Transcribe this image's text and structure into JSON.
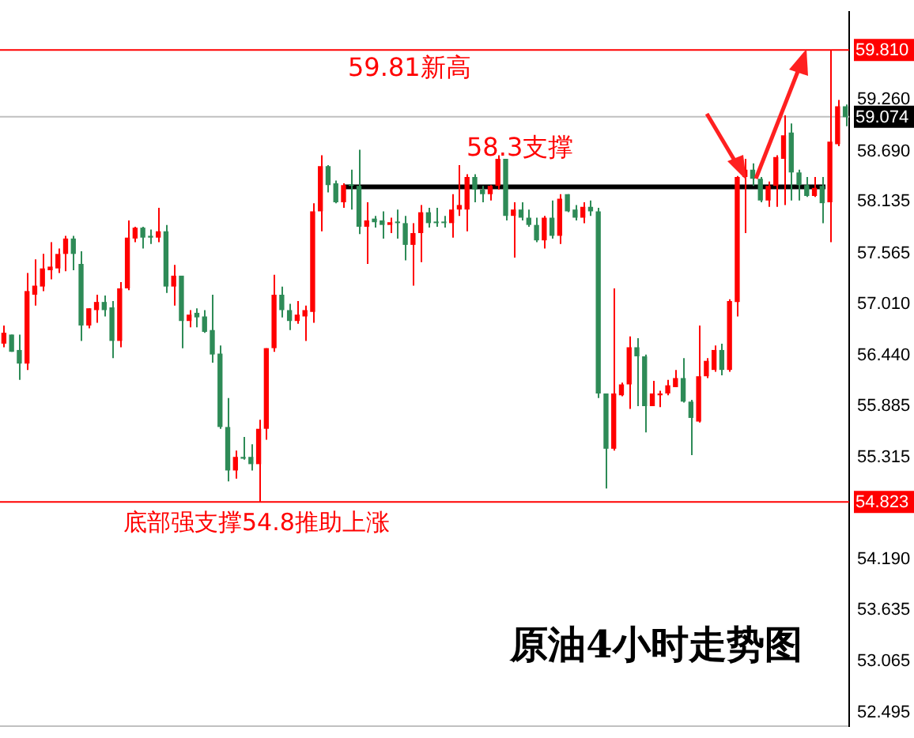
{
  "chart_data": {
    "type": "candlestick",
    "title": "原油4小时走势图",
    "annotations": [
      {
        "text": "59.81新高",
        "y": 59.81
      },
      {
        "text": "58.3支撑",
        "y": 58.3
      },
      {
        "text": "底部强支撑54.8推助上涨",
        "y": 54.823
      }
    ],
    "categories": [
      null,
      null,
      null,
      null,
      null,
      null,
      null,
      null,
      null,
      null,
      null,
      null,
      null,
      null,
      null,
      null,
      null,
      null,
      null,
      null,
      null,
      null,
      null,
      null,
      null,
      null,
      null,
      null,
      null,
      null,
      null,
      null,
      null,
      null,
      null,
      null,
      null,
      null,
      null,
      null,
      null,
      null,
      null,
      null,
      null,
      null,
      null,
      null,
      null,
      null,
      null,
      null,
      null,
      null,
      null,
      null,
      null,
      null,
      null,
      null,
      null,
      null,
      null,
      null,
      null,
      null,
      null,
      null,
      null,
      null,
      null,
      null,
      null,
      null,
      null,
      null,
      null,
      null,
      null,
      null,
      null,
      null,
      null,
      null,
      null,
      null,
      null,
      null,
      null,
      null,
      null,
      null,
      null,
      null,
      null,
      null,
      null,
      null,
      null,
      null,
      null,
      null,
      null,
      null,
      null,
      null,
      null,
      null,
      null,
      null
    ],
    "ohlc": [
      [
        56.57,
        56.77,
        56.53,
        56.69
      ],
      [
        56.67,
        56.67,
        56.48,
        56.48
      ],
      [
        56.5,
        56.67,
        56.17,
        56.35
      ],
      [
        56.35,
        57.35,
        56.28,
        57.15
      ],
      [
        57.11,
        57.5,
        56.99,
        57.21
      ],
      [
        57.2,
        57.56,
        57.15,
        57.4
      ],
      [
        57.38,
        57.69,
        57.28,
        57.42
      ],
      [
        57.4,
        57.62,
        57.35,
        57.56
      ],
      [
        57.56,
        57.76,
        57.37,
        57.73
      ],
      [
        57.73,
        57.76,
        57.38,
        57.56
      ],
      [
        57.45,
        57.59,
        56.6,
        56.77
      ],
      [
        56.77,
        56.96,
        56.74,
        56.96
      ],
      [
        56.94,
        57.11,
        56.8,
        57.03
      ],
      [
        57.03,
        57.1,
        56.87,
        56.94
      ],
      [
        56.97,
        57.04,
        56.41,
        56.6
      ],
      [
        56.6,
        57.25,
        56.53,
        57.18
      ],
      [
        57.18,
        57.93,
        57.16,
        57.74
      ],
      [
        57.73,
        57.86,
        57.69,
        57.85
      ],
      [
        57.85,
        57.86,
        57.62,
        57.74
      ],
      [
        57.76,
        57.83,
        57.67,
        57.74
      ],
      [
        57.74,
        58.07,
        57.69,
        57.81
      ],
      [
        57.81,
        57.88,
        57.13,
        57.2
      ],
      [
        57.2,
        57.44,
        56.99,
        57.32
      ],
      [
        57.32,
        57.32,
        56.52,
        56.82
      ],
      [
        56.82,
        56.94,
        56.75,
        56.89
      ],
      [
        56.91,
        56.96,
        56.75,
        56.86
      ],
      [
        56.87,
        56.94,
        56.69,
        56.7
      ],
      [
        56.72,
        57.11,
        56.36,
        56.45
      ],
      [
        56.46,
        56.55,
        55.63,
        55.65
      ],
      [
        55.65,
        55.97,
        55.05,
        55.17
      ],
      [
        55.17,
        55.39,
        55.08,
        55.32
      ],
      [
        55.32,
        55.54,
        55.29,
        55.3
      ],
      [
        55.32,
        55.46,
        55.17,
        55.24
      ],
      [
        55.24,
        55.73,
        54.82,
        55.63
      ],
      [
        55.63,
        56.52,
        55.51,
        56.52
      ],
      [
        56.52,
        57.33,
        56.48,
        57.11
      ],
      [
        57.11,
        57.2,
        56.86,
        56.94
      ],
      [
        56.94,
        57.01,
        56.72,
        56.82
      ],
      [
        56.82,
        57.04,
        56.79,
        56.89
      ],
      [
        56.87,
        56.99,
        56.6,
        56.94
      ],
      [
        56.92,
        58.12,
        56.8,
        58.03
      ],
      [
        58.03,
        58.65,
        57.81,
        58.53
      ],
      [
        58.53,
        58.54,
        58.24,
        58.32
      ],
      [
        58.34,
        58.37,
        58.12,
        58.13
      ],
      [
        58.13,
        58.34,
        58.07,
        58.32
      ],
      [
        58.32,
        58.49,
        58.05,
        58.31
      ],
      [
        58.31,
        58.71,
        57.78,
        57.86
      ],
      [
        57.86,
        58.13,
        57.45,
        57.93
      ],
      [
        57.95,
        57.98,
        57.85,
        57.91
      ],
      [
        57.93,
        58.03,
        57.73,
        57.88
      ],
      [
        57.88,
        57.96,
        57.79,
        57.91
      ],
      [
        57.91,
        58.05,
        57.73,
        57.9
      ],
      [
        57.9,
        57.98,
        57.49,
        57.66
      ],
      [
        57.66,
        57.9,
        57.21,
        57.79
      ],
      [
        57.79,
        58.1,
        57.47,
        58.02
      ],
      [
        58.02,
        58.07,
        57.85,
        57.9
      ],
      [
        57.91,
        58.07,
        57.86,
        57.9
      ],
      [
        57.91,
        57.98,
        57.85,
        57.9
      ],
      [
        57.9,
        58.22,
        57.74,
        58.05
      ],
      [
        58.05,
        58.54,
        57.98,
        58.1
      ],
      [
        58.05,
        58.44,
        57.81,
        58.41
      ],
      [
        58.41,
        58.44,
        58.13,
        58.27
      ],
      [
        58.27,
        58.31,
        58.13,
        58.22
      ],
      [
        58.22,
        58.32,
        58.15,
        58.31
      ],
      [
        58.31,
        58.65,
        58.27,
        58.61
      ],
      [
        58.61,
        58.61,
        57.93,
        57.98
      ],
      [
        57.98,
        58.13,
        57.52,
        58.05
      ],
      [
        58.05,
        58.13,
        57.93,
        57.96
      ],
      [
        57.96,
        58.05,
        57.86,
        57.88
      ],
      [
        57.88,
        57.96,
        57.69,
        57.71
      ],
      [
        57.71,
        57.98,
        57.62,
        57.96
      ],
      [
        57.96,
        58.15,
        57.73,
        57.76
      ],
      [
        57.76,
        58.22,
        57.67,
        58.17
      ],
      [
        58.22,
        58.22,
        58.02,
        58.03
      ],
      [
        58.05,
        58.1,
        57.93,
        57.96
      ],
      [
        57.96,
        58.13,
        57.9,
        58.08
      ],
      [
        58.08,
        58.15,
        57.98,
        58.03
      ],
      [
        58.03,
        58.07,
        55.97,
        56.02
      ],
      [
        56.02,
        56.02,
        54.97,
        55.41
      ],
      [
        55.41,
        57.18,
        55.39,
        56.02
      ],
      [
        56.0,
        56.14,
        55.99,
        56.12
      ],
      [
        56.12,
        56.65,
        55.85,
        56.53
      ],
      [
        56.53,
        56.63,
        55.88,
        56.43
      ],
      [
        56.43,
        56.45,
        55.59,
        55.88
      ],
      [
        55.88,
        56.16,
        55.88,
        56.02
      ],
      [
        56.0,
        56.05,
        55.87,
        56.02
      ],
      [
        56.02,
        56.17,
        56.0,
        56.11
      ],
      [
        56.09,
        56.28,
        56.09,
        56.19
      ],
      [
        56.19,
        56.41,
        55.92,
        55.93
      ],
      [
        55.93,
        55.95,
        55.34,
        55.75
      ],
      [
        55.71,
        56.77,
        55.7,
        56.21
      ],
      [
        56.21,
        56.41,
        56.19,
        56.38
      ],
      [
        56.28,
        56.55,
        56.26,
        56.5
      ],
      [
        56.5,
        56.57,
        56.22,
        56.28
      ],
      [
        56.28,
        57.06,
        56.26,
        57.04
      ],
      [
        57.03,
        58.42,
        56.87,
        58.41
      ],
      [
        58.41,
        58.61,
        57.79,
        58.49
      ],
      [
        58.49,
        58.56,
        58.31,
        58.39
      ],
      [
        58.39,
        58.41,
        58.13,
        58.15
      ],
      [
        58.15,
        58.36,
        58.08,
        58.31
      ],
      [
        58.31,
        58.65,
        58.08,
        58.63
      ],
      [
        58.61,
        59.09,
        58.1,
        58.87
      ],
      [
        58.9,
        59.0,
        58.15,
        58.46
      ],
      [
        58.46,
        58.49,
        58.15,
        58.32
      ],
      [
        58.32,
        58.41,
        58.19,
        58.2
      ],
      [
        58.2,
        58.41,
        58.19,
        58.29
      ],
      [
        58.31,
        58.41,
        57.9,
        58.12
      ],
      [
        58.13,
        59.81,
        57.69,
        58.8
      ],
      [
        58.77,
        59.26,
        58.75,
        59.19
      ],
      [
        59.19,
        59.21,
        58.97,
        59.07
      ]
    ],
    "colors": [
      "#ff0000",
      "#2e8b57",
      "#2e8b57",
      "#ff0000",
      "#ff0000",
      "#ff0000",
      "#ff0000",
      "#ff0000",
      "#ff0000",
      "#2e8b57",
      "#2e8b57",
      "#ff0000",
      "#ff0000",
      "#2e8b57",
      "#2e8b57",
      "#ff0000",
      "#ff0000",
      "#ff0000",
      "#2e8b57",
      "#2e8b57",
      "#ff0000",
      "#2e8b57",
      "#ff0000",
      "#2e8b57",
      "#ff0000",
      "#2e8b57",
      "#2e8b57",
      "#2e8b57",
      "#2e8b57",
      "#2e8b57",
      "#ff0000",
      "#2e8b57",
      "#2e8b57",
      "#ff0000",
      "#ff0000",
      "#ff0000",
      "#2e8b57",
      "#2e8b57",
      "#ff0000",
      "#ff0000",
      "#ff0000",
      "#ff0000",
      "#2e8b57",
      "#2e8b57",
      "#ff0000",
      "#2e8b57",
      "#2e8b57",
      "#ff0000",
      "#2e8b57",
      "#2e8b57",
      "#ff0000",
      "#2e8b57",
      "#2e8b57",
      "#ff0000",
      "#ff0000",
      "#2e8b57",
      "#2e8b57",
      "#2e8b57",
      "#ff0000",
      "#ff0000",
      "#ff0000",
      "#2e8b57",
      "#2e8b57",
      "#ff0000",
      "#ff0000",
      "#2e8b57",
      "#ff0000",
      "#2e8b57",
      "#2e8b57",
      "#2e8b57",
      "#ff0000",
      "#2e8b57",
      "#ff0000",
      "#2e8b57",
      "#2e8b57",
      "#ff0000",
      "#2e8b57",
      "#2e8b57",
      "#2e8b57",
      "#ff0000",
      "#ff0000",
      "#ff0000",
      "#2e8b57",
      "#2e8b57",
      "#ff0000",
      "#ff0000",
      "#ff0000",
      "#ff0000",
      "#2e8b57",
      "#2e8b57",
      "#ff0000",
      "#ff0000",
      "#ff0000",
      "#2e8b57",
      "#ff0000",
      "#ff0000",
      "#ff0000",
      "#2e8b57",
      "#2e8b57",
      "#ff0000",
      "#ff0000",
      "#ff0000",
      "#2e8b57",
      "#2e8b57",
      "#2e8b57",
      "#ff0000",
      "#2e8b57",
      "#ff0000",
      "#ff0000",
      "#2e8b57"
    ],
    "ylim": [
      52.35,
      60.23
    ],
    "yticks": [
      {
        "value": 59.26,
        "label": "59.260"
      },
      {
        "value": 58.69,
        "label": "58.690"
      },
      {
        "value": 58.135,
        "label": "58.135"
      },
      {
        "value": 57.565,
        "label": "57.565"
      },
      {
        "value": 57.01,
        "label": "57.010"
      },
      {
        "value": 56.44,
        "label": "56.440"
      },
      {
        "value": 55.885,
        "label": "55.885"
      },
      {
        "value": 55.315,
        "label": "55.315"
      },
      {
        "value": 54.19,
        "label": "54.190"
      },
      {
        "value": 53.635,
        "label": "53.635"
      },
      {
        "value": 53.065,
        "label": "53.065"
      },
      {
        "value": 52.495,
        "label": "52.495"
      }
    ],
    "ref_lines": [
      {
        "axis": "y",
        "value": 59.81,
        "label": "59.810",
        "color": "#ff0000"
      },
      {
        "axis": "y",
        "value": 59.074,
        "label": "59.074",
        "color": "#c0c0c0"
      },
      {
        "axis": "y",
        "value": 54.823,
        "label": "54.823",
        "color": "#ff0000"
      },
      {
        "axis": "y",
        "value": 58.3,
        "color": "#000000"
      }
    ],
    "tick_labels": "y"
  }
}
